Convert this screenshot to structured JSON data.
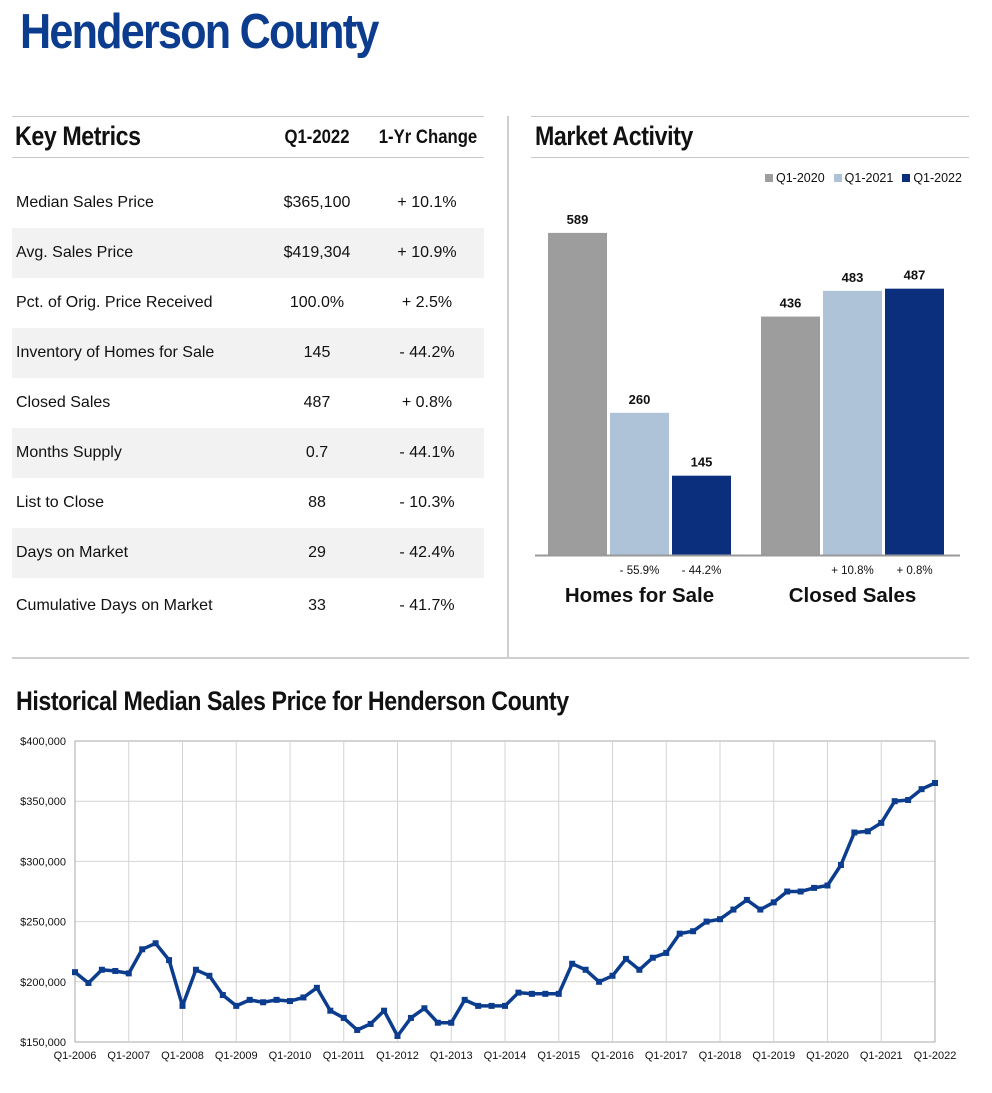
{
  "page_title": "Henderson County",
  "key_metrics": {
    "title": "Key Metrics",
    "col_period": "Q1-2022",
    "col_change": "1-Yr Change",
    "rows": [
      {
        "label": "Median Sales Price",
        "value": "$365,100",
        "change": "+ 10.1%"
      },
      {
        "label": "Avg. Sales Price",
        "value": "$419,304",
        "change": "+ 10.9%"
      },
      {
        "label": "Pct. of Orig. Price Received",
        "value": "100.0%",
        "change": "+ 2.5%"
      },
      {
        "label": "Inventory of Homes for Sale",
        "value": "145",
        "change": "- 44.2%"
      },
      {
        "label": "Closed Sales",
        "value": "487",
        "change": "+ 0.8%"
      },
      {
        "label": "Months Supply",
        "value": "0.7",
        "change": "- 44.1%"
      },
      {
        "label": "List to Close",
        "value": "88",
        "change": "- 10.3%"
      },
      {
        "label": "Days on Market",
        "value": "29",
        "change": "- 42.4%"
      },
      {
        "label": "Cumulative Days on Market",
        "value": "33",
        "change": "- 41.7%"
      }
    ]
  },
  "market_activity": {
    "title": "Market Activity"
  },
  "history": {
    "title": "Historical Median Sales Price for Henderson County"
  },
  "colors": {
    "q1_2020": "#9d9d9d",
    "q1_2021": "#aec3d8",
    "q1_2022": "#0b2f7d",
    "line": "#0b3c8e",
    "brand": "#0b3c8e"
  },
  "chart_data": [
    {
      "type": "bar",
      "title": "Market Activity",
      "categories": [
        "Homes for Sale",
        "Closed Sales"
      ],
      "series": [
        {
          "name": "Q1-2020",
          "values": [
            589,
            436
          ]
        },
        {
          "name": "Q1-2021",
          "values": [
            260,
            483
          ]
        },
        {
          "name": "Q1-2022",
          "values": [
            145,
            487
          ]
        }
      ],
      "change_labels": [
        [
          "- 55.9%",
          "- 44.2%"
        ],
        [
          "+ 10.8%",
          "+ 0.8%"
        ]
      ],
      "ylim": [
        0,
        640
      ],
      "legend": "top-right"
    },
    {
      "type": "line",
      "title": "Historical Median Sales Price for Henderson County",
      "xlabel": "",
      "ylabel": "",
      "ylim": [
        150000,
        400000
      ],
      "y_ticks": [
        "$150,000",
        "$200,000",
        "$250,000",
        "$300,000",
        "$350,000",
        "$400,000"
      ],
      "x_ticks": [
        "Q1-2006",
        "Q1-2007",
        "Q1-2008",
        "Q1-2009",
        "Q1-2010",
        "Q1-2011",
        "Q1-2012",
        "Q1-2013",
        "Q1-2014",
        "Q1-2015",
        "Q1-2016",
        "Q1-2017",
        "Q1-2018",
        "Q1-2019",
        "Q1-2020",
        "Q1-2021",
        "Q1-2022"
      ],
      "grid": true,
      "values": [
        208000,
        199000,
        210000,
        209000,
        207000,
        227000,
        232000,
        218000,
        180000,
        210000,
        205000,
        189000,
        180000,
        185000,
        183000,
        185000,
        184000,
        187000,
        195000,
        176000,
        170000,
        160000,
        165000,
        176000,
        155000,
        170000,
        178000,
        166000,
        166000,
        185000,
        180000,
        180000,
        180000,
        191000,
        190000,
        190000,
        190000,
        215000,
        210000,
        200000,
        205000,
        219000,
        210000,
        220000,
        224000,
        240000,
        242000,
        250000,
        252000,
        260000,
        268000,
        260000,
        266000,
        275000,
        275000,
        278000,
        280000,
        297000,
        324000,
        325000,
        332000,
        350000,
        351000,
        360000,
        365100
      ]
    }
  ]
}
